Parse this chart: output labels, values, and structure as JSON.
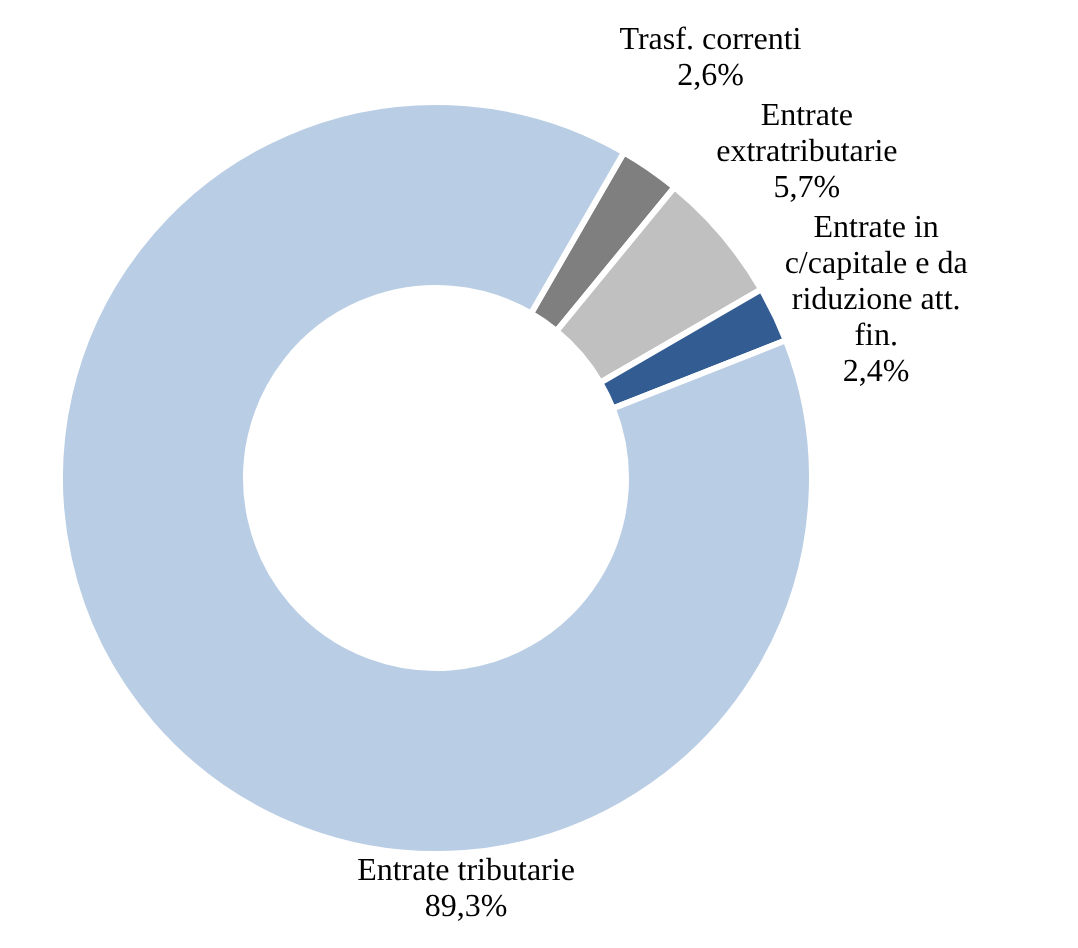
{
  "chart_data": {
    "type": "donut",
    "categories": [
      "Trasf. correnti",
      "Entrate extratributarie",
      "Entrate in c/capitale e da riduzione att. fin.",
      "Entrate tributarie"
    ],
    "values": [
      2.6,
      5.7,
      2.4,
      89.3
    ],
    "colors": [
      "#7f7f7f",
      "#c0c0c0",
      "#335d92",
      "#b9cde5"
    ],
    "value_labels": [
      "2,6%",
      "5,7%",
      "2,4%",
      "89,3%"
    ]
  }
}
